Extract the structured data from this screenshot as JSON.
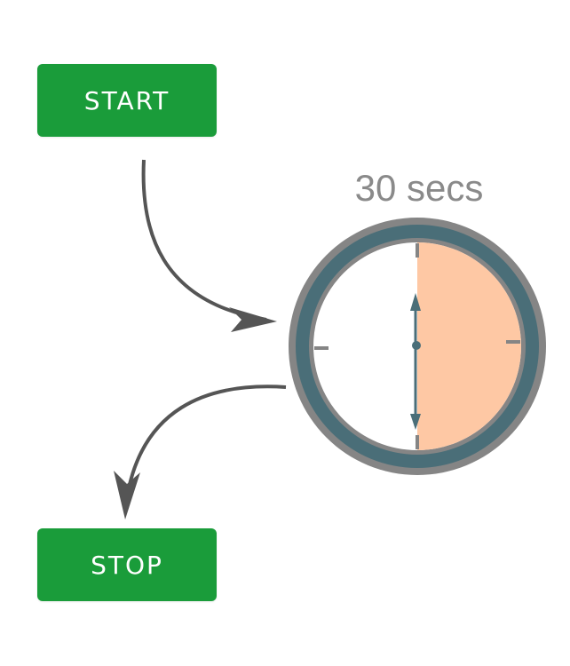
{
  "buttons": {
    "start_label": "START",
    "stop_label": "STOP"
  },
  "timer": {
    "duration_label": "30 secs",
    "elapsed_fraction": 0.5
  },
  "colors": {
    "button_green": "#1a9c3a",
    "ring_gray": "#858585",
    "ring_teal": "#4a6e78",
    "fill_peach": "#fec8a4",
    "arrow_gray": "#555555"
  }
}
